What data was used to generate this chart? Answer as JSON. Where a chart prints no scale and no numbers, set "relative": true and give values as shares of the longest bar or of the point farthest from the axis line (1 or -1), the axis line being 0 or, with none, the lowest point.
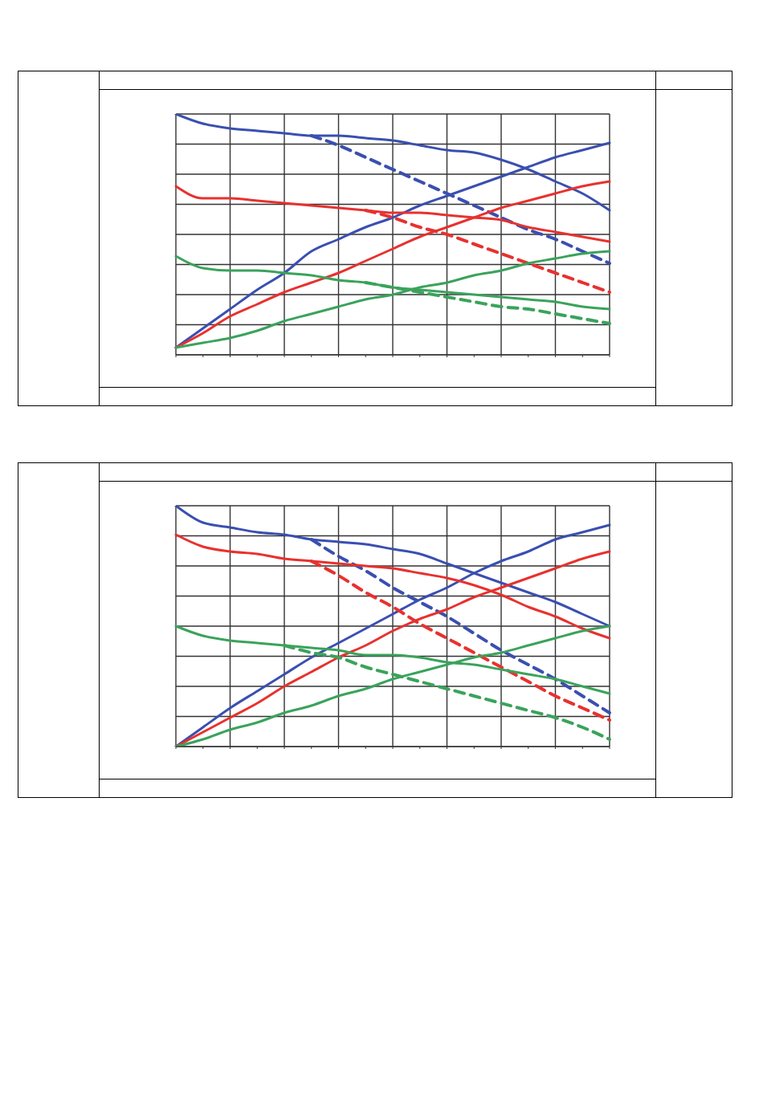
{
  "chart_data": [
    {
      "type": "line",
      "relative": true,
      "grid": true,
      "legend": false,
      "categories": [
        null,
        null,
        null,
        null,
        null,
        null,
        null,
        null,
        null,
        null,
        null,
        null,
        null,
        null,
        null,
        null,
        null
      ],
      "series": [
        {
          "color": "#3a4fb0",
          "line_style": "solid",
          "values": [
            1.0,
            0.96,
            0.94,
            0.93,
            0.92,
            0.91,
            0.91,
            0.9,
            0.89,
            0.87,
            0.85,
            0.84,
            0.81,
            0.77,
            0.72,
            0.67,
            0.6
          ]
        },
        {
          "color": "#3a4fb0",
          "line_style": "dashed",
          "values": [
            null,
            null,
            null,
            null,
            null,
            0.91,
            0.87,
            0.82,
            0.77,
            0.72,
            0.67,
            0.62,
            0.57,
            0.52,
            0.48,
            0.43,
            0.38
          ]
        },
        {
          "color": "#3a4fb0",
          "line_style": "solid",
          "values": [
            0.03,
            0.11,
            0.19,
            0.27,
            0.34,
            0.43,
            0.48,
            0.53,
            0.57,
            0.62,
            0.66,
            0.7,
            0.74,
            0.78,
            0.82,
            0.85,
            0.88
          ]
        },
        {
          "color": "#e8312e",
          "line_style": "solid",
          "values": [
            0.7,
            0.65,
            0.65,
            0.64,
            0.63,
            0.62,
            0.61,
            0.6,
            0.59,
            0.59,
            0.58,
            0.57,
            0.56,
            0.53,
            0.51,
            0.49,
            0.47
          ]
        },
        {
          "color": "#e8312e",
          "line_style": "dashed",
          "values": [
            null,
            null,
            null,
            null,
            null,
            null,
            null,
            0.6,
            0.57,
            0.53,
            0.5,
            0.46,
            0.42,
            0.38,
            0.34,
            0.3,
            0.26
          ]
        },
        {
          "color": "#e8312e",
          "line_style": "solid",
          "values": [
            0.03,
            0.09,
            0.16,
            0.21,
            0.26,
            0.3,
            0.34,
            0.39,
            0.44,
            0.49,
            0.53,
            0.57,
            0.61,
            0.64,
            0.67,
            0.7,
            0.72
          ]
        },
        {
          "color": "#3aa35b",
          "line_style": "solid",
          "values": [
            0.41,
            0.36,
            0.35,
            0.35,
            0.34,
            0.33,
            0.31,
            0.3,
            0.28,
            0.27,
            0.26,
            0.25,
            0.24,
            0.23,
            0.22,
            0.2,
            0.19
          ]
        },
        {
          "color": "#3aa35b",
          "line_style": "dashed",
          "values": [
            null,
            null,
            null,
            null,
            null,
            null,
            null,
            0.3,
            0.28,
            0.26,
            0.24,
            0.22,
            0.2,
            0.19,
            0.17,
            0.15,
            0.13
          ]
        },
        {
          "color": "#3aa35b",
          "line_style": "solid",
          "values": [
            0.03,
            0.05,
            0.07,
            0.1,
            0.14,
            0.17,
            0.2,
            0.23,
            0.25,
            0.28,
            0.3,
            0.33,
            0.35,
            0.38,
            0.4,
            0.42,
            0.43
          ]
        }
      ]
    },
    {
      "type": "line",
      "relative": true,
      "grid": true,
      "legend": false,
      "categories": [
        null,
        null,
        null,
        null,
        null,
        null,
        null,
        null,
        null,
        null,
        null,
        null,
        null,
        null,
        null,
        null,
        null
      ],
      "series": [
        {
          "color": "#3a4fb0",
          "line_style": "solid",
          "values": [
            1.0,
            0.93,
            0.91,
            0.89,
            0.88,
            0.86,
            0.85,
            0.84,
            0.82,
            0.8,
            0.76,
            0.72,
            0.68,
            0.64,
            0.6,
            0.55,
            0.5
          ]
        },
        {
          "color": "#3a4fb0",
          "line_style": "dashed",
          "values": [
            null,
            null,
            null,
            null,
            null,
            0.86,
            0.79,
            0.73,
            0.66,
            0.6,
            0.54,
            0.47,
            0.4,
            0.34,
            0.28,
            0.21,
            0.14
          ]
        },
        {
          "color": "#3a4fb0",
          "line_style": "solid",
          "values": [
            0.0,
            0.08,
            0.16,
            0.23,
            0.3,
            0.37,
            0.43,
            0.49,
            0.55,
            0.61,
            0.66,
            0.72,
            0.77,
            0.81,
            0.86,
            0.89,
            0.92
          ]
        },
        {
          "color": "#e8312e",
          "line_style": "solid",
          "values": [
            0.88,
            0.83,
            0.81,
            0.8,
            0.78,
            0.77,
            0.76,
            0.75,
            0.74,
            0.72,
            0.7,
            0.67,
            0.63,
            0.58,
            0.54,
            0.49,
            0.45
          ]
        },
        {
          "color": "#e8312e",
          "line_style": "dashed",
          "values": [
            null,
            null,
            null,
            null,
            null,
            0.77,
            0.71,
            0.64,
            0.58,
            0.51,
            0.45,
            0.39,
            0.33,
            0.27,
            0.21,
            0.16,
            0.11
          ]
        },
        {
          "color": "#e8312e",
          "line_style": "solid",
          "values": [
            0.0,
            0.06,
            0.12,
            0.18,
            0.25,
            0.31,
            0.37,
            0.42,
            0.48,
            0.53,
            0.57,
            0.62,
            0.66,
            0.7,
            0.74,
            0.78,
            0.81
          ]
        },
        {
          "color": "#3aa35b",
          "line_style": "solid",
          "values": [
            0.5,
            0.46,
            0.44,
            0.43,
            0.42,
            0.41,
            0.4,
            0.38,
            0.38,
            0.37,
            0.35,
            0.34,
            0.32,
            0.3,
            0.28,
            0.25,
            0.22
          ]
        },
        {
          "color": "#3aa35b",
          "line_style": "dashed",
          "values": [
            null,
            null,
            null,
            null,
            0.42,
            0.39,
            0.37,
            0.33,
            0.3,
            0.27,
            0.24,
            0.21,
            0.18,
            0.15,
            0.12,
            0.08,
            0.03
          ]
        },
        {
          "color": "#3aa35b",
          "line_style": "solid",
          "values": [
            0.0,
            0.03,
            0.07,
            0.1,
            0.14,
            0.17,
            0.21,
            0.24,
            0.28,
            0.31,
            0.34,
            0.37,
            0.39,
            0.42,
            0.45,
            0.48,
            0.5
          ]
        }
      ]
    }
  ]
}
